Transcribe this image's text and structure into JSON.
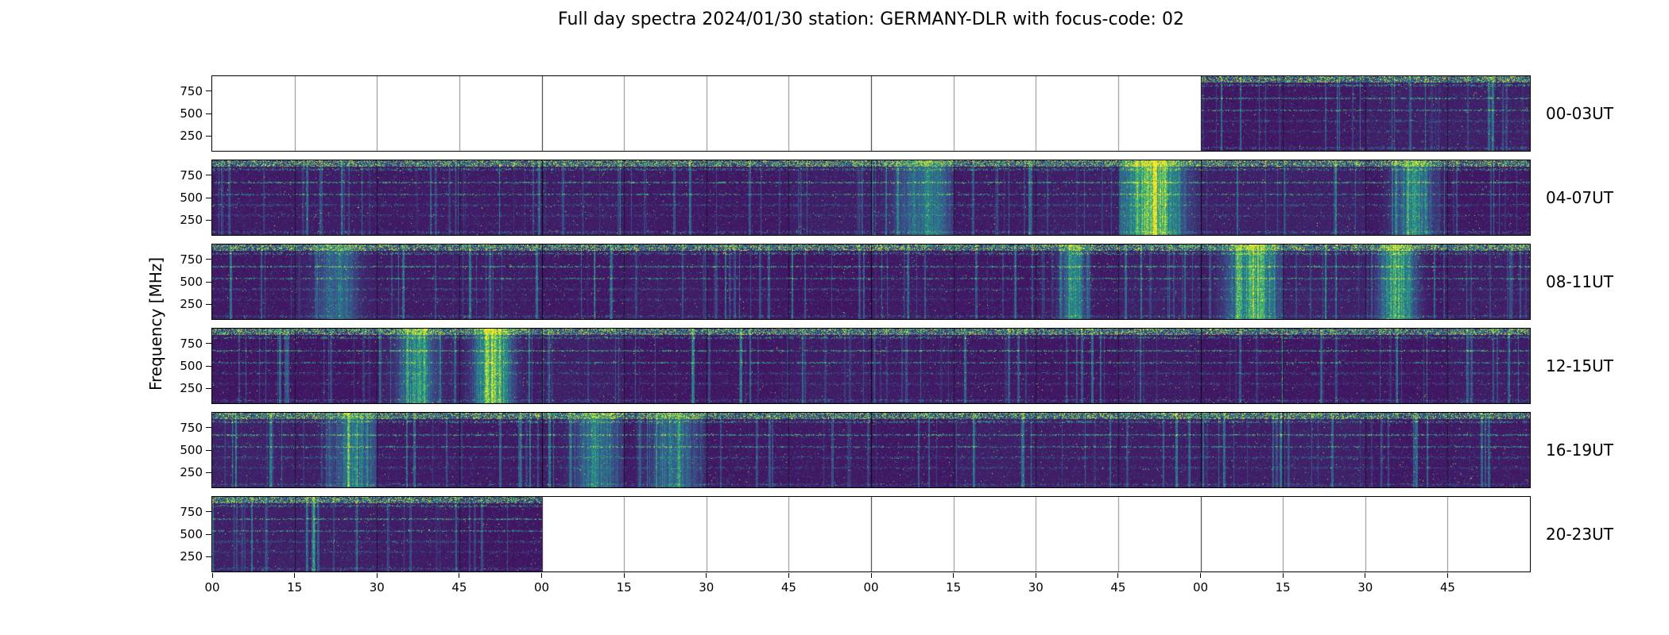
{
  "chart_data": {
    "type": "heatmap",
    "subtype": "radio spectrogram day overview",
    "title": "Full day spectra 2024/01/30 station: GERMANY-DLR with focus-code: 02",
    "date": "2024/01/30",
    "station": "GERMANY-DLR",
    "focus_code": "02",
    "ylabel": "Frequency [MHz]",
    "yticks": [
      250,
      500,
      750
    ],
    "ylim_estimated_mhz": [
      80,
      900
    ],
    "colormap": "viridis",
    "segments_per_row": 16,
    "segment_duration_min": 15,
    "hours_per_row": 4,
    "x_tick_labels_minutes": [
      "00",
      "15",
      "30",
      "45"
    ],
    "legend_position": "none",
    "grid": "vertical seams at every 15-minute segment, stronger at hour boundaries",
    "rows": [
      {
        "label": "00-03UT",
        "segments_with_data": [
          12,
          13,
          14,
          15
        ]
      },
      {
        "label": "04-07UT",
        "segments_with_data": [
          0,
          1,
          2,
          3,
          4,
          5,
          6,
          7,
          8,
          9,
          10,
          11,
          12,
          13,
          14,
          15
        ]
      },
      {
        "label": "08-11UT",
        "segments_with_data": [
          0,
          1,
          2,
          3,
          4,
          5,
          6,
          7,
          8,
          9,
          10,
          11,
          12,
          13,
          14,
          15
        ]
      },
      {
        "label": "12-15UT",
        "segments_with_data": [
          0,
          1,
          2,
          3,
          4,
          5,
          6,
          7,
          8,
          9,
          10,
          11,
          12,
          13,
          14,
          15
        ]
      },
      {
        "label": "16-19UT",
        "segments_with_data": [
          0,
          1,
          2,
          3,
          4,
          5,
          6,
          7,
          8,
          9,
          10,
          11,
          12,
          13,
          14,
          15
        ]
      },
      {
        "label": "20-23UT",
        "segments_with_data": [
          0,
          1,
          2,
          3
        ]
      }
    ],
    "data_coverage": "observations recorded from ~03:00 UT to ~20:59 UT; panels are blank (white) outside the observing window",
    "persistent_features": "dense speckled bright interference band along the top edge (~800-870 MHz) and narrow bright horizontal lines near ~670, ~540 and ~300 MHz across all recorded segments",
    "notable_bursts": [
      {
        "row": "04-07UT",
        "segment": 11,
        "strength": 0.85
      },
      {
        "row": "08-11UT",
        "segment": 12,
        "strength": 0.8
      },
      {
        "row": "08-11UT",
        "segment": 14,
        "strength": 0.75
      },
      {
        "row": "08-11UT",
        "segment": 10,
        "strength": 0.5
      },
      {
        "row": "12-15UT",
        "segment": 3,
        "strength": 0.85
      },
      {
        "row": "12-15UT",
        "segment": 2,
        "strength": 0.55
      },
      {
        "row": "16-19UT",
        "segment": 4,
        "strength": 0.45
      },
      {
        "row": "16-19UT",
        "segment": 5,
        "strength": 0.4
      }
    ],
    "colors": {
      "background": "#ffffff",
      "spectrogram_low": "#440154",
      "spectrogram_mid": "#21918c",
      "spectrogram_high": "#fde725",
      "frame": "#000000"
    }
  }
}
